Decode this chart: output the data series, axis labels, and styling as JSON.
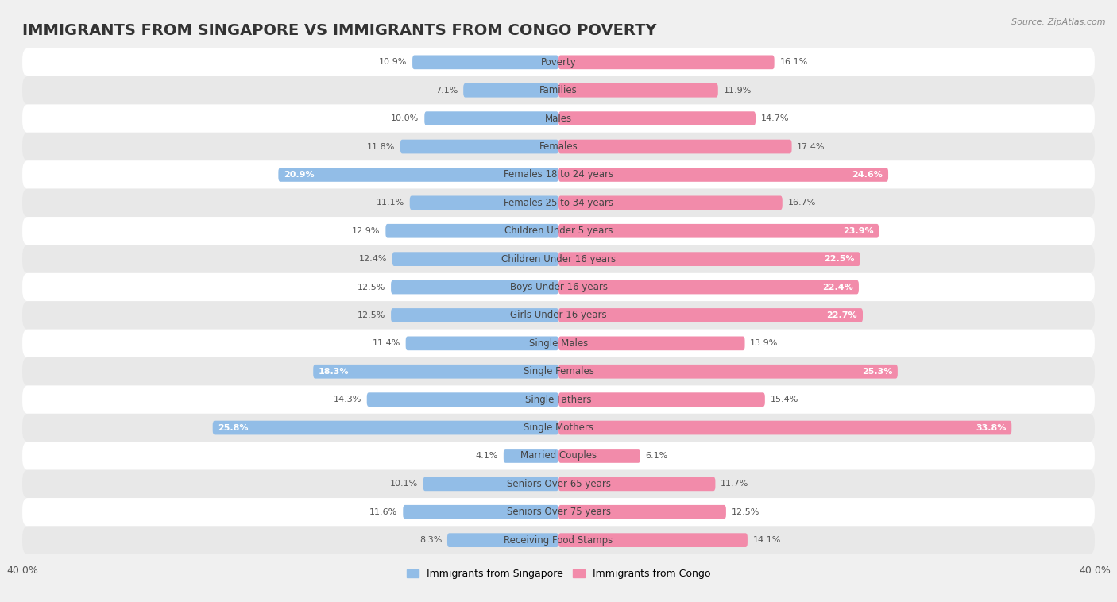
{
  "title": "IMMIGRANTS FROM SINGAPORE VS IMMIGRANTS FROM CONGO POVERTY",
  "source": "Source: ZipAtlas.com",
  "categories": [
    "Poverty",
    "Families",
    "Males",
    "Females",
    "Females 18 to 24 years",
    "Females 25 to 34 years",
    "Children Under 5 years",
    "Children Under 16 years",
    "Boys Under 16 years",
    "Girls Under 16 years",
    "Single Males",
    "Single Females",
    "Single Fathers",
    "Single Mothers",
    "Married Couples",
    "Seniors Over 65 years",
    "Seniors Over 75 years",
    "Receiving Food Stamps"
  ],
  "singapore_values": [
    10.9,
    7.1,
    10.0,
    11.8,
    20.9,
    11.1,
    12.9,
    12.4,
    12.5,
    12.5,
    11.4,
    18.3,
    14.3,
    25.8,
    4.1,
    10.1,
    11.6,
    8.3
  ],
  "congo_values": [
    16.1,
    11.9,
    14.7,
    17.4,
    24.6,
    16.7,
    23.9,
    22.5,
    22.4,
    22.7,
    13.9,
    25.3,
    15.4,
    33.8,
    6.1,
    11.7,
    12.5,
    14.1
  ],
  "singapore_color": "#92bde7",
  "congo_color": "#f28baa",
  "singapore_label": "Immigrants from Singapore",
  "congo_label": "Immigrants from Congo",
  "xlim": 40.0,
  "background_color": "#f0f0f0",
  "row_color_light": "#ffffff",
  "row_color_dark": "#e8e8e8",
  "title_fontsize": 14,
  "label_fontsize": 8.5,
  "value_fontsize": 8.0
}
